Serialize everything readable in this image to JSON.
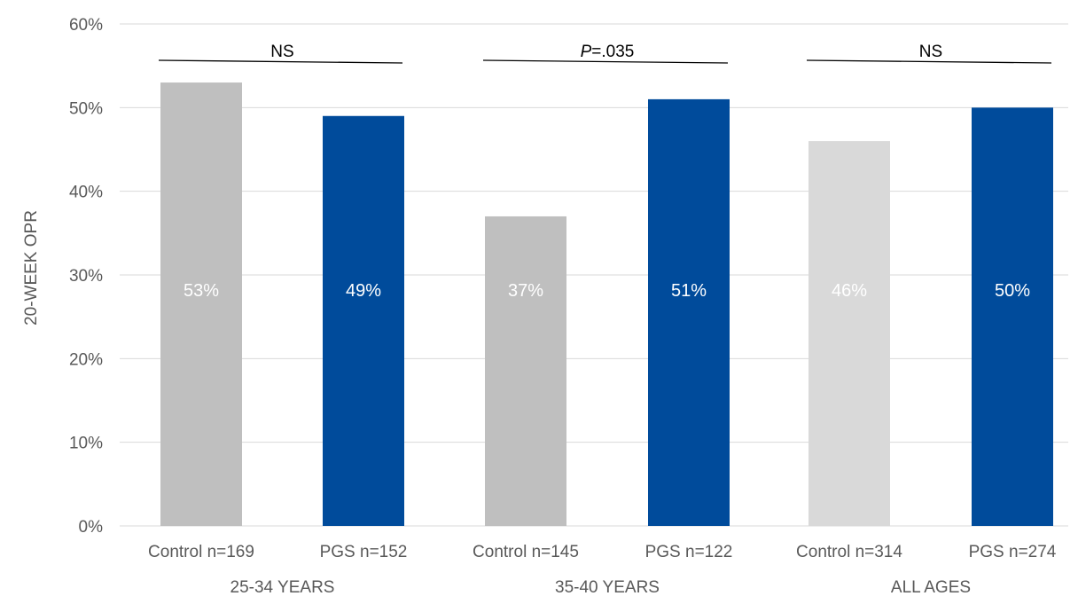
{
  "chart_data": {
    "type": "bar",
    "ylabel": "20-WEEK OPR",
    "ylim": [
      0,
      60
    ],
    "yticks": [
      "0%",
      "10%",
      "20%",
      "30%",
      "40%",
      "50%",
      "60%"
    ],
    "grid": true,
    "categories": [
      "Control n=169",
      "PGS n=152",
      "Control n=145",
      "PGS n=122",
      "Control n=314",
      "PGS n=274"
    ],
    "values": [
      53,
      49,
      37,
      51,
      46,
      50
    ],
    "data_labels": [
      "53%",
      "49%",
      "37%",
      "51%",
      "46%",
      "50%"
    ],
    "bar_colors": [
      "#bfbfbf",
      "#004b9b",
      "#bfbfbf",
      "#004b9b",
      "#d9d9d9",
      "#004b9b"
    ],
    "groups": [
      {
        "label": "25-34 YEARS",
        "significance": "NS"
      },
      {
        "label": "35-40 YEARS",
        "significance": "P=.035",
        "significance_italic": "P",
        "significance_rest": "=.035"
      },
      {
        "label": "ALL AGES",
        "significance": "NS"
      }
    ]
  }
}
